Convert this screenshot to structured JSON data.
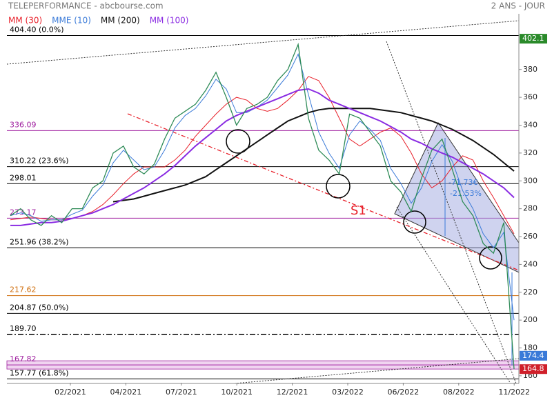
{
  "chart_data": {
    "type": "line",
    "title": "TELEPERFORMANCE - abcbourse.com",
    "subtitle": "2 ANS - JOUR",
    "xticks": [
      "02/2021",
      "04/2021",
      "07/2021",
      "10/2021",
      "12/2021",
      "03/2022",
      "06/2022",
      "08/2022",
      "11/2022"
    ],
    "ylim": [
      155,
      420
    ],
    "yticks": [
      160,
      180,
      200,
      220,
      240,
      260,
      280,
      300,
      320,
      340,
      360,
      380
    ],
    "price": {
      "color": "#2e8b57",
      "values": [
        275,
        280,
        272,
        268,
        275,
        270,
        280,
        280,
        295,
        300,
        320,
        325,
        310,
        305,
        312,
        330,
        345,
        350,
        355,
        365,
        378,
        360,
        340,
        352,
        355,
        360,
        372,
        380,
        398,
        345,
        322,
        315,
        305,
        348,
        345,
        335,
        325,
        300,
        292,
        278,
        302,
        322,
        330,
        308,
        285,
        275,
        255,
        248,
        270,
        164.8
      ]
    },
    "series": [
      {
        "name": "MM (30)",
        "color": "#e8202a",
        "values": [
          272,
          273,
          274,
          273,
          272,
          272,
          273,
          275,
          278,
          283,
          290,
          298,
          305,
          310,
          310,
          310,
          315,
          322,
          332,
          340,
          348,
          355,
          360,
          358,
          352,
          350,
          352,
          358,
          365,
          375,
          372,
          360,
          345,
          330,
          325,
          330,
          335,
          338,
          332,
          320,
          305,
          295,
          300,
          310,
          318,
          315,
          300,
          288,
          275,
          262
        ]
      },
      {
        "name": "MME (10)",
        "color": "#3a7ad8",
        "values": [
          275,
          277,
          275,
          271,
          272,
          272,
          276,
          279,
          289,
          297,
          313,
          322,
          315,
          308,
          310,
          322,
          338,
          347,
          352,
          361,
          373,
          366,
          349,
          349,
          353,
          358,
          367,
          376,
          391,
          362,
          335,
          320,
          309,
          333,
          343,
          337,
          329,
          309,
          298,
          284,
          295,
          314,
          326,
          314,
          293,
          280,
          262,
          252,
          263,
          200
        ]
      },
      {
        "name": "MM (200)",
        "color": "#111111",
        "values": [
          null,
          null,
          null,
          null,
          null,
          null,
          null,
          null,
          null,
          null,
          285,
          286,
          287,
          289,
          291,
          293,
          295,
          297,
          300,
          303,
          308,
          313,
          318,
          323,
          328,
          333,
          338,
          343,
          346,
          349,
          351,
          352,
          352,
          352,
          352,
          352,
          351,
          350,
          349,
          347,
          345,
          343,
          340,
          337,
          333,
          329,
          324,
          319,
          313,
          307
        ]
      },
      {
        "name": "MM (100)",
        "color": "#8a2be2",
        "values": [
          268,
          268,
          269,
          270,
          270,
          271,
          273,
          275,
          277,
          280,
          283,
          287,
          291,
          295,
          300,
          305,
          311,
          318,
          325,
          331,
          337,
          343,
          347,
          350,
          353,
          356,
          359,
          362,
          365,
          366,
          363,
          358,
          355,
          352,
          349,
          346,
          343,
          339,
          335,
          330,
          327,
          323,
          320,
          317,
          313,
          309,
          305,
          300,
          295,
          288
        ]
      }
    ],
    "levels": [
      {
        "value": 404.4,
        "label": "404.40  (0.0%)",
        "color": "#000000"
      },
      {
        "value": 336.09,
        "label": "336.09",
        "color": "#a020a0"
      },
      {
        "value": 310.22,
        "label": "310.22  (23.6%)",
        "color": "#000000"
      },
      {
        "value": 298.01,
        "label": "298.01",
        "color": "#000000"
      },
      {
        "value": 273.17,
        "label": "273.17",
        "color": "#a020a0"
      },
      {
        "value": 251.96,
        "label": "251.96  (38.2%)",
        "color": "#000000"
      },
      {
        "value": 217.62,
        "label": "217.62",
        "color": "#d07010"
      },
      {
        "value": 204.87,
        "label": "204.87  (50.0%)",
        "color": "#000000"
      },
      {
        "value": 189.7,
        "label": "189.70",
        "color": "#000000"
      },
      {
        "value": 167.82,
        "label": "167.82",
        "color": "#a020a0"
      },
      {
        "value": 157.77,
        "label": "157.77  (61.8%)",
        "color": "#000000"
      }
    ],
    "price_tags": [
      {
        "value": 402.1,
        "color": "#2a8a2a"
      },
      {
        "value": 174.4,
        "color": "#3a7ad8"
      },
      {
        "value": 164.8,
        "color": "#d0202a"
      }
    ],
    "annotations": [
      "S1",
      "-71.73€",
      "-21.53%"
    ]
  }
}
